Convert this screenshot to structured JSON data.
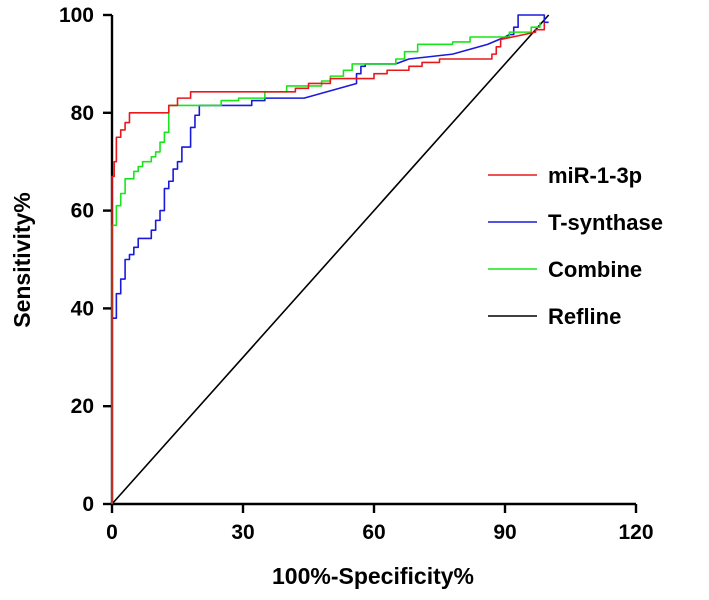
{
  "chart_data": {
    "type": "line",
    "title": "",
    "xlabel": "100%-Specificity%",
    "ylabel": "Sensitivity%",
    "xlim": [
      0,
      120
    ],
    "ylim": [
      0,
      100
    ],
    "xticks": [
      0,
      30,
      60,
      90,
      120
    ],
    "yticks": [
      0,
      20,
      40,
      60,
      80,
      100
    ],
    "grid": false,
    "legend_position": "right",
    "series": [
      {
        "name": "miR-1-3p",
        "color": "#e8191c",
        "points": [
          [
            0,
            0
          ],
          [
            0,
            60
          ],
          [
            0,
            67
          ],
          [
            0.5,
            67
          ],
          [
            0.5,
            70
          ],
          [
            1,
            70
          ],
          [
            1,
            75
          ],
          [
            2,
            75
          ],
          [
            2,
            76.5
          ],
          [
            3,
            76.5
          ],
          [
            3,
            78
          ],
          [
            4,
            78
          ],
          [
            4,
            80
          ],
          [
            13,
            80
          ],
          [
            13,
            81.5
          ],
          [
            15,
            81.5
          ],
          [
            15,
            83
          ],
          [
            18,
            83
          ],
          [
            18,
            84.3
          ],
          [
            42,
            84.3
          ],
          [
            42,
            85
          ],
          [
            45,
            85
          ],
          [
            45,
            86
          ],
          [
            50,
            86
          ],
          [
            50,
            87
          ],
          [
            60,
            87
          ],
          [
            60,
            88
          ],
          [
            63,
            88
          ],
          [
            63,
            88.7
          ],
          [
            68,
            88.7
          ],
          [
            68,
            89.5
          ],
          [
            71,
            89.5
          ],
          [
            71,
            90.3
          ],
          [
            75,
            90.3
          ],
          [
            75,
            91
          ],
          [
            87,
            91
          ],
          [
            87,
            92
          ],
          [
            88,
            92
          ],
          [
            88,
            93.5
          ],
          [
            89,
            93.5
          ],
          [
            89,
            95
          ],
          [
            97,
            96.5
          ],
          [
            97,
            97
          ],
          [
            99,
            97
          ],
          [
            99,
            98.5
          ]
        ]
      },
      {
        "name": "T-synthase",
        "color": "#1a1adb",
        "points": [
          [
            0,
            0
          ],
          [
            0,
            38
          ],
          [
            1,
            38
          ],
          [
            1,
            43
          ],
          [
            2,
            43
          ],
          [
            2,
            46
          ],
          [
            3,
            46
          ],
          [
            3,
            50
          ],
          [
            4,
            50
          ],
          [
            4,
            51
          ],
          [
            5,
            51
          ],
          [
            5,
            52.5
          ],
          [
            6,
            52.5
          ],
          [
            6,
            54.3
          ],
          [
            9,
            54.3
          ],
          [
            9,
            56
          ],
          [
            10,
            56
          ],
          [
            10,
            58
          ],
          [
            11,
            58
          ],
          [
            11,
            60
          ],
          [
            12,
            60
          ],
          [
            12,
            64.5
          ],
          [
            13,
            64.5
          ],
          [
            13,
            66
          ],
          [
            14,
            66
          ],
          [
            14,
            68.5
          ],
          [
            15,
            68.5
          ],
          [
            15,
            70
          ],
          [
            16,
            70
          ],
          [
            16,
            73
          ],
          [
            18,
            73
          ],
          [
            18,
            77
          ],
          [
            19,
            77
          ],
          [
            19,
            79.5
          ],
          [
            20,
            79.5
          ],
          [
            20,
            81.5
          ],
          [
            32,
            81.5
          ],
          [
            32,
            82.5
          ],
          [
            35,
            82.5
          ],
          [
            35,
            83
          ],
          [
            44,
            83
          ],
          [
            56,
            86
          ],
          [
            56,
            88
          ],
          [
            57,
            88
          ],
          [
            57,
            89.5
          ],
          [
            58,
            89.5
          ],
          [
            58,
            90
          ],
          [
            65,
            90
          ],
          [
            68,
            91
          ],
          [
            78,
            92
          ],
          [
            86,
            94
          ],
          [
            90,
            95.5
          ],
          [
            91,
            96
          ],
          [
            92,
            96
          ],
          [
            92,
            97.5
          ],
          [
            93,
            97.5
          ],
          [
            93,
            100
          ],
          [
            99,
            100
          ],
          [
            99,
            98.5
          ],
          [
            100,
            98.5
          ]
        ]
      },
      {
        "name": "Combine",
        "color": "#19e619",
        "points": [
          [
            0,
            0
          ],
          [
            0,
            57
          ],
          [
            1,
            57
          ],
          [
            1,
            61
          ],
          [
            2,
            61
          ],
          [
            2,
            63.5
          ],
          [
            3,
            63.5
          ],
          [
            3,
            66.5
          ],
          [
            5,
            66.5
          ],
          [
            5,
            68
          ],
          [
            6,
            68
          ],
          [
            6,
            69
          ],
          [
            7,
            69
          ],
          [
            7,
            70
          ],
          [
            9,
            70
          ],
          [
            9,
            71
          ],
          [
            10,
            71
          ],
          [
            10,
            72
          ],
          [
            11,
            72
          ],
          [
            11,
            74
          ],
          [
            12,
            74
          ],
          [
            12,
            76
          ],
          [
            13,
            76
          ],
          [
            13,
            81.5
          ],
          [
            25,
            81.5
          ],
          [
            25,
            82.5
          ],
          [
            29,
            82.5
          ],
          [
            29,
            83
          ],
          [
            35,
            83
          ],
          [
            35,
            84.3
          ],
          [
            40,
            84.3
          ],
          [
            40,
            85.5
          ],
          [
            48,
            85.5
          ],
          [
            48,
            86.5
          ],
          [
            50,
            86.5
          ],
          [
            50,
            87.5
          ],
          [
            53,
            87.5
          ],
          [
            53,
            88.7
          ],
          [
            55,
            88.7
          ],
          [
            55,
            90
          ],
          [
            65,
            90
          ],
          [
            65,
            91
          ],
          [
            67,
            91
          ],
          [
            67,
            92.5
          ],
          [
            70,
            92.5
          ],
          [
            70,
            94
          ],
          [
            78,
            94
          ],
          [
            78,
            94.5
          ],
          [
            82,
            94.5
          ],
          [
            82,
            95.5
          ],
          [
            91,
            95.5
          ],
          [
            91,
            96.5
          ],
          [
            96,
            96.5
          ],
          [
            96,
            97.5
          ],
          [
            98,
            97.5
          ],
          [
            98,
            98.5
          ]
        ]
      },
      {
        "name": "Refline",
        "color": "#000000",
        "points": [
          [
            0,
            0
          ],
          [
            100,
            100
          ]
        ]
      }
    ]
  }
}
